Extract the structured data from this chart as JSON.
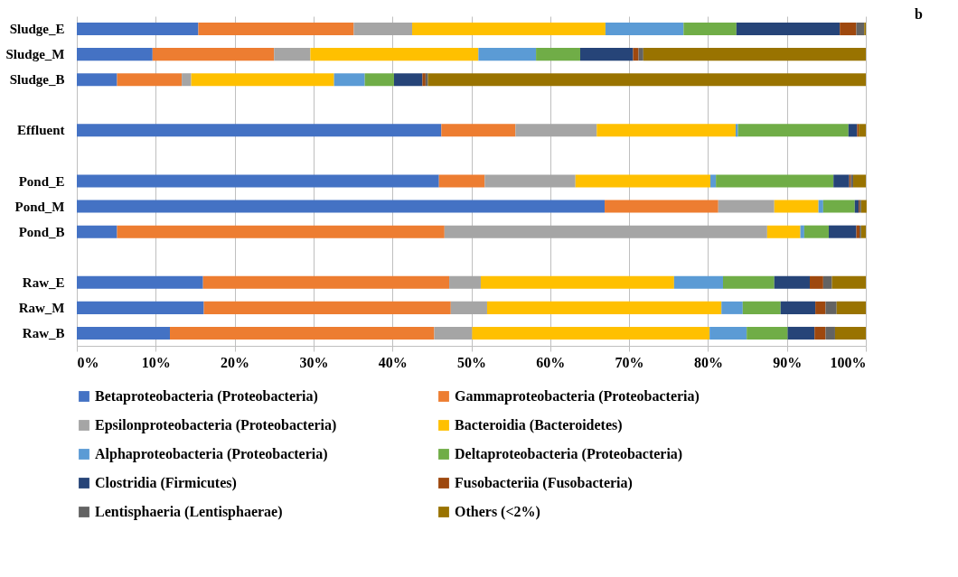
{
  "chart_data": {
    "type": "bar",
    "orientation": "horizontal",
    "stacked": true,
    "grid": "x",
    "legend": "bottom",
    "annotations": [
      "b"
    ],
    "categories": [
      "Sludge_E",
      "Sludge_M",
      "Sludge_B",
      null,
      "Effluent",
      null,
      "Pond_E",
      "Pond_M",
      "Pond_B",
      null,
      "Raw_E",
      "Raw_M",
      "Raw_B"
    ],
    "xlim": [
      0,
      100
    ],
    "xticks": [
      {
        "value": 0,
        "label": "0%"
      },
      {
        "value": 10,
        "label": "10%"
      },
      {
        "value": 20,
        "label": "20%"
      },
      {
        "value": 30,
        "label": "30%"
      },
      {
        "value": 40,
        "label": "40%"
      },
      {
        "value": 50,
        "label": "50%"
      },
      {
        "value": 60,
        "label": "60%"
      },
      {
        "value": 70,
        "label": "70%"
      },
      {
        "value": 80,
        "label": "80%"
      },
      {
        "value": 90,
        "label": "90%"
      },
      {
        "value": 100,
        "label": "100%"
      }
    ],
    "series": [
      {
        "name": "Betaproteobacteria (Proteobacteria)",
        "color": "#4472c4",
        "values": [
          15.4,
          9.6,
          5.1,
          null,
          46.2,
          null,
          45.9,
          66.9,
          5.1,
          null,
          16.0,
          16.1,
          11.8
        ]
      },
      {
        "name": "Gammaproteobacteria (Proteobacteria)",
        "color": "#ed7d31",
        "values": [
          19.7,
          15.4,
          8.2,
          null,
          9.4,
          null,
          5.8,
          14.4,
          41.5,
          null,
          31.2,
          31.3,
          33.5
        ]
      },
      {
        "name": "Epsilonproteobacteria (Proteobacteria)",
        "color": "#a5a5a5",
        "values": [
          7.4,
          4.6,
          1.2,
          null,
          10.3,
          null,
          11.5,
          7.1,
          40.9,
          null,
          4.0,
          4.6,
          4.8
        ]
      },
      {
        "name": "Bacteroidia (Bacteroidetes)",
        "color": "#ffc000",
        "values": [
          24.5,
          21.3,
          18.1,
          null,
          17.6,
          null,
          17.1,
          5.6,
          4.2,
          null,
          24.5,
          29.7,
          30.1
        ]
      },
      {
        "name": "Alphaproteobacteria (Proteobacteria)",
        "color": "#5b9bd5",
        "values": [
          9.9,
          7.3,
          3.9,
          null,
          0.3,
          null,
          0.7,
          0.6,
          0.5,
          null,
          6.2,
          2.7,
          4.7
        ]
      },
      {
        "name": "Deltaproteobacteria (Proteobacteria)",
        "color": "#70ad47",
        "values": [
          6.7,
          5.6,
          3.7,
          null,
          14.0,
          null,
          14.9,
          4.0,
          3.1,
          null,
          6.5,
          4.8,
          5.2
        ]
      },
      {
        "name": "Clostridia (Firmicutes)",
        "color": "#264478",
        "values": [
          13.1,
          6.7,
          3.6,
          null,
          1.1,
          null,
          2.0,
          0.5,
          3.5,
          null,
          4.5,
          4.4,
          3.4
        ]
      },
      {
        "name": "Fusobacteriia (Fusobacteria)",
        "color": "#9e480e",
        "values": [
          2.1,
          0.7,
          0.4,
          null,
          0.2,
          null,
          0.2,
          0.1,
          0.4,
          null,
          1.7,
          1.3,
          1.4
        ]
      },
      {
        "name": "Lentisphaeria (Lentisphaerae)",
        "color": "#636363",
        "values": [
          1.0,
          0.6,
          0.3,
          null,
          0,
          null,
          0.3,
          0.2,
          0.2,
          null,
          1.1,
          1.4,
          1.2
        ]
      },
      {
        "name": "Others (<2%)",
        "color": "#997300",
        "values": [
          0.2,
          28.2,
          55.5,
          null,
          0.9,
          null,
          1.6,
          0.7,
          0.6,
          null,
          4.3,
          3.7,
          3.9
        ]
      }
    ]
  }
}
